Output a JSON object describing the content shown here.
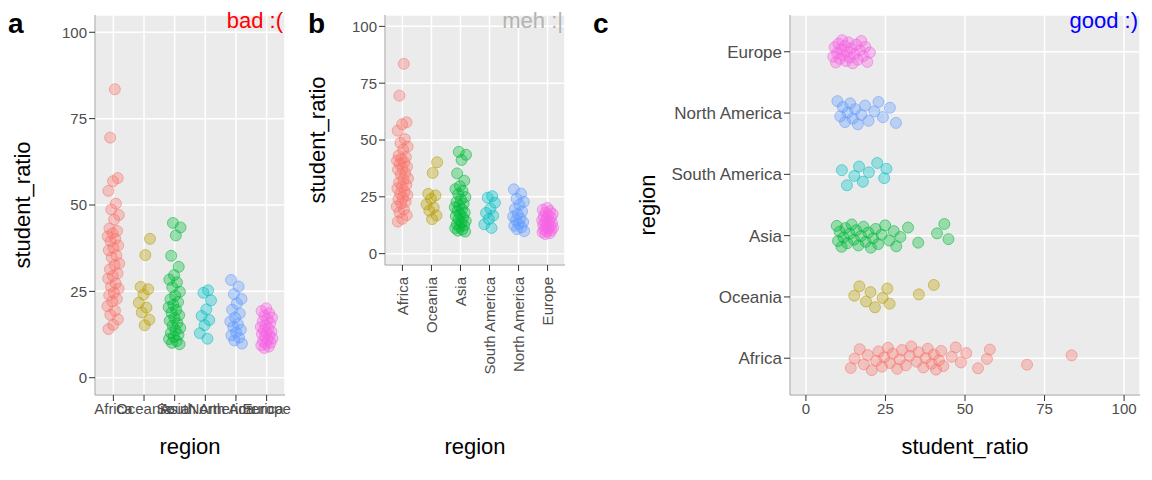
{
  "chart_data": [
    {
      "type": "scatter",
      "title": "a",
      "annotation": {
        "text": "bad :(",
        "color": "#FF0000"
      },
      "x_label": "region",
      "y_label": "student_ratio",
      "grid": true,
      "categories": [
        "Africa",
        "Oceania",
        "Asia",
        "South America",
        "North America",
        "Europe"
      ],
      "colors": [
        "#F8766D",
        "#B79F00",
        "#00BA38",
        "#00BFC4",
        "#619CFF",
        "#F564E3"
      ],
      "ylim": [
        -5,
        105
      ],
      "yticks": [
        0,
        25,
        50,
        75,
        100
      ],
      "values": [
        [
          83.5,
          69.5,
          57.8,
          56.9,
          54.1,
          50.4,
          48.7,
          47.1,
          45.8,
          43.2,
          42.5,
          41.8,
          40.9,
          40.2,
          39.5,
          38.3,
          37.6,
          36.9,
          35.4,
          34.8,
          33.1,
          32.6,
          31.4,
          30.2,
          29.5,
          28.7,
          27.3,
          26.4,
          25.8,
          24.6,
          23.9,
          22.8,
          22.1,
          20.7,
          19.4,
          18.2,
          16.9,
          15.3,
          14.1
        ],
        [
          40.2,
          35.5,
          26.3,
          25.6,
          24.1,
          21.7,
          20.3,
          18.9,
          16.8,
          15.2
        ],
        [
          44.8,
          43.5,
          41.2,
          35.3,
          32.1,
          29.7,
          28.4,
          27.6,
          26.2,
          24.9,
          23.8,
          22.7,
          21.9,
          21.1,
          20.4,
          19.6,
          18.8,
          18.1,
          17.3,
          16.5,
          15.8,
          15.1,
          14.4,
          13.7,
          13.0,
          12.4,
          11.8,
          11.2,
          10.6,
          10.1,
          9.7
        ],
        [
          25.3,
          24.6,
          22.4,
          19.8,
          17.9,
          16.7,
          15.2,
          12.9,
          11.3
        ],
        [
          28.3,
          26.4,
          24.2,
          22.8,
          21.5,
          19.7,
          18.6,
          17.4,
          16.3,
          15.5,
          14.7,
          13.9,
          13.1,
          12.3,
          11.6,
          10.8,
          9.9
        ],
        [
          20.1,
          19.3,
          18.7,
          18.0,
          17.4,
          16.9,
          16.3,
          15.8,
          15.2,
          14.7,
          14.3,
          13.8,
          13.4,
          13.0,
          12.6,
          12.2,
          11.8,
          11.4,
          11.0,
          10.6,
          10.2,
          9.8,
          9.4,
          9.0,
          8.6
        ]
      ]
    },
    {
      "type": "scatter",
      "title": "b",
      "annotation": {
        "text": "meh :|",
        "color": "#B3B3B3"
      },
      "x_label": "region",
      "y_label": "student_ratio",
      "grid": true,
      "categories": [
        "Africa",
        "Oceania",
        "Asia",
        "South America",
        "North America",
        "Europe"
      ],
      "colors": [
        "#F8766D",
        "#B79F00",
        "#00BA38",
        "#00BFC4",
        "#619CFF",
        "#F564E3"
      ],
      "ylim": [
        -5,
        105
      ],
      "yticks": [
        0,
        25,
        50,
        75,
        100
      ],
      "values": [
        [
          83.5,
          69.5,
          57.8,
          56.9,
          54.1,
          50.4,
          48.7,
          47.1,
          45.8,
          43.2,
          42.5,
          41.8,
          40.9,
          40.2,
          39.5,
          38.3,
          37.6,
          36.9,
          35.4,
          34.8,
          33.1,
          32.6,
          31.4,
          30.2,
          29.5,
          28.7,
          27.3,
          26.4,
          25.8,
          24.6,
          23.9,
          22.8,
          22.1,
          20.7,
          19.4,
          18.2,
          16.9,
          15.3,
          14.1
        ],
        [
          40.2,
          35.5,
          26.3,
          25.6,
          24.1,
          21.7,
          20.3,
          18.9,
          16.8,
          15.2
        ],
        [
          44.8,
          43.5,
          41.2,
          35.3,
          32.1,
          29.7,
          28.4,
          27.6,
          26.2,
          24.9,
          23.8,
          22.7,
          21.9,
          21.1,
          20.4,
          19.6,
          18.8,
          18.1,
          17.3,
          16.5,
          15.8,
          15.1,
          14.4,
          13.7,
          13.0,
          12.4,
          11.8,
          11.2,
          10.6,
          10.1,
          9.7
        ],
        [
          25.3,
          24.6,
          22.4,
          19.8,
          17.9,
          16.7,
          15.2,
          12.9,
          11.3
        ],
        [
          28.3,
          26.4,
          24.2,
          22.8,
          21.5,
          19.7,
          18.6,
          17.4,
          16.3,
          15.5,
          14.7,
          13.9,
          13.1,
          12.3,
          11.6,
          10.8,
          9.9
        ],
        [
          20.1,
          19.3,
          18.7,
          18.0,
          17.4,
          16.9,
          16.3,
          15.8,
          15.2,
          14.7,
          14.3,
          13.8,
          13.4,
          13.0,
          12.6,
          12.2,
          11.8,
          11.4,
          11.0,
          10.6,
          10.2,
          9.8,
          9.4,
          9.0,
          8.6
        ]
      ]
    },
    {
      "type": "scatter",
      "title": "c",
      "annotation": {
        "text": "good :)",
        "color": "#0000FF"
      },
      "x_label": "student_ratio",
      "y_label": "region",
      "grid": true,
      "orientation": "horizontal",
      "categories": [
        "Africa",
        "Oceania",
        "Asia",
        "South America",
        "North America",
        "Europe"
      ],
      "colors": [
        "#F8766D",
        "#B79F00",
        "#00BA38",
        "#00BFC4",
        "#619CFF",
        "#F564E3"
      ],
      "xlim": [
        -5,
        105
      ],
      "xticks": [
        0,
        25,
        50,
        75,
        100
      ],
      "values": [
        [
          83.5,
          69.5,
          57.8,
          56.9,
          54.1,
          50.4,
          48.7,
          47.1,
          45.8,
          43.2,
          42.5,
          41.8,
          40.9,
          40.2,
          39.5,
          38.3,
          37.6,
          36.9,
          35.4,
          34.8,
          33.1,
          32.6,
          31.4,
          30.2,
          29.5,
          28.7,
          27.3,
          26.4,
          25.8,
          24.6,
          23.9,
          22.8,
          22.1,
          20.7,
          19.4,
          18.2,
          16.9,
          15.3,
          14.1
        ],
        [
          40.2,
          35.5,
          26.3,
          25.6,
          24.1,
          21.7,
          20.3,
          18.9,
          16.8,
          15.2
        ],
        [
          44.8,
          43.5,
          41.2,
          35.3,
          32.1,
          29.7,
          28.4,
          27.6,
          26.2,
          24.9,
          23.8,
          22.7,
          21.9,
          21.1,
          20.4,
          19.6,
          18.8,
          18.1,
          17.3,
          16.5,
          15.8,
          15.1,
          14.4,
          13.7,
          13.0,
          12.4,
          11.8,
          11.2,
          10.6,
          10.1,
          9.7
        ],
        [
          25.3,
          24.6,
          22.4,
          19.8,
          17.9,
          16.7,
          15.2,
          12.9,
          11.3
        ],
        [
          28.3,
          26.4,
          24.2,
          22.8,
          21.5,
          19.7,
          18.6,
          17.4,
          16.3,
          15.5,
          14.7,
          13.9,
          13.1,
          12.3,
          11.6,
          10.8,
          9.9
        ],
        [
          20.1,
          19.3,
          18.7,
          18.0,
          17.4,
          16.9,
          16.3,
          15.8,
          15.2,
          14.7,
          14.3,
          13.8,
          13.4,
          13.0,
          12.6,
          12.2,
          11.8,
          11.4,
          11.0,
          10.6,
          10.2,
          9.8,
          9.4,
          9.0,
          8.6
        ]
      ]
    }
  ]
}
